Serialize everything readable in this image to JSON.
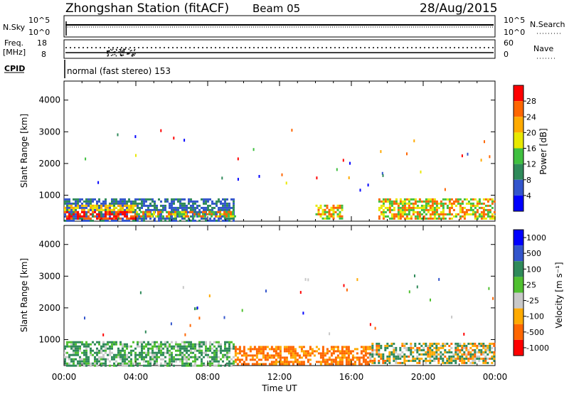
{
  "header": {
    "title": "Zhongshan Station (fitACF)",
    "beam": "Beam 05",
    "date": "28/Aug/2015"
  },
  "aux_panels": {
    "nsky_label": "N.Sky",
    "nsearch_label": "N.Search",
    "nsky_ticks": [
      "10^5",
      "10^0"
    ],
    "nsearch_ticks": [
      "10^5",
      "10^0"
    ],
    "freq_label_top": "Freq.",
    "freq_label_bottom": "[MHz]",
    "freq_ticks": [
      "18",
      "8"
    ],
    "nave_label": "Nave",
    "nave_ticks": [
      "60",
      "0"
    ],
    "cpid_label": "CPID",
    "cpid_text": "normal (fast stereo) 153"
  },
  "chart_data": [
    {
      "type": "heatmap",
      "name": "power",
      "ylabel": "Slant Range [km]",
      "yticks": [
        1000,
        2000,
        3000,
        4000
      ],
      "ylim": [
        180,
        4600
      ],
      "xlim": [
        0,
        24
      ],
      "colorbar": {
        "label": "Power [dB]",
        "ticks": [
          "4",
          "8",
          "12",
          "16",
          "20",
          "24",
          "28"
        ],
        "colors": [
          "#0000ff",
          "#3355cc",
          "#2f8a5a",
          "#40c040",
          "#e8e800",
          "#ffaa00",
          "#ff6600",
          "#ff0000"
        ]
      },
      "features": [
        {
          "t0": 0.0,
          "t1": 9.5,
          "r0": 200,
          "r1": 900,
          "level": "low"
        },
        {
          "t0": 0.0,
          "t1": 4.0,
          "r0": 250,
          "r1": 700,
          "level": "high"
        },
        {
          "t0": 4.0,
          "t1": 9.5,
          "r0": 300,
          "r1": 500,
          "level": "mid"
        },
        {
          "t0": 14.0,
          "t1": 15.5,
          "r0": 250,
          "r1": 700,
          "level": "mid"
        },
        {
          "t0": 17.5,
          "t1": 24.0,
          "r0": 250,
          "r1": 900,
          "level": "mid"
        }
      ]
    },
    {
      "type": "heatmap",
      "name": "velocity",
      "xlabel": "Time UT",
      "ylabel": "Slant Range [km]",
      "xticks": [
        "00:00",
        "04:00",
        "08:00",
        "12:00",
        "16:00",
        "20:00",
        "00:00"
      ],
      "yticks": [
        1000,
        2000,
        3000,
        4000
      ],
      "ylim": [
        180,
        4600
      ],
      "xlim": [
        0,
        24
      ],
      "colorbar": {
        "label": "Velocity [m s⁻¹]",
        "ticks": [
          "1000",
          "500",
          "100",
          "25",
          "-25",
          "-100",
          "-500",
          "-1000"
        ],
        "colors": [
          "#0000ff",
          "#3355cc",
          "#2f8a5a",
          "#50c030",
          "#c8c8c8",
          "#ffaa00",
          "#ff6600",
          "#ff0000"
        ]
      },
      "features": [
        {
          "t0": 0.0,
          "t1": 9.5,
          "r0": 200,
          "r1": 950,
          "level": "pos"
        },
        {
          "t0": 9.5,
          "t1": 17.0,
          "r0": 250,
          "r1": 800,
          "level": "neg"
        },
        {
          "t0": 17.0,
          "t1": 24.0,
          "r0": 250,
          "r1": 900,
          "level": "mix"
        }
      ]
    }
  ]
}
